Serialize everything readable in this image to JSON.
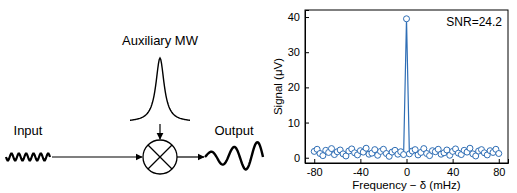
{
  "diagram": {
    "input": "Input",
    "auxiliary": "Auxiliary MW",
    "output": "Output"
  },
  "chart_data": {
    "type": "line",
    "marker": "circle-open",
    "x_label": "Frequency − δ (mHz)",
    "y_label": "Signal (μV)",
    "annotation": "SNR=24.2",
    "x": [
      -80,
      -77.5,
      -75,
      -72.5,
      -70,
      -67.5,
      -65,
      -62.5,
      -60,
      -57.5,
      -55,
      -52.5,
      -50,
      -47.5,
      -45,
      -42.5,
      -40,
      -37.5,
      -35,
      -32.5,
      -30,
      -27.5,
      -25,
      -22.5,
      -20,
      -17.5,
      -15,
      -12.5,
      -10,
      -7.5,
      -5,
      -2.5,
      0,
      2.5,
      5,
      7.5,
      10,
      12.5,
      15,
      17.5,
      20,
      22.5,
      25,
      27.5,
      30,
      32.5,
      35,
      37.5,
      40,
      42.5,
      45,
      47.5,
      50,
      52.5,
      55,
      57.5,
      60,
      62.5,
      65,
      67.5,
      70,
      72.5,
      75,
      77.5,
      80
    ],
    "series": [
      {
        "color": "#2f6eb5",
        "values": [
          1.8,
          2.4,
          1.2,
          0.6,
          2.1,
          1.5,
          2.6,
          0.9,
          1.7,
          2.2,
          1.1,
          0.5,
          1.9,
          2.5,
          1.4,
          0.8,
          2.0,
          1.6,
          2.7,
          1.0,
          1.3,
          2.3,
          0.7,
          1.8,
          2.4,
          1.2,
          0.4,
          1.6,
          2.1,
          1.0,
          1.7,
          0.9,
          39.5,
          1.1,
          1.9,
          2.3,
          0.8,
          1.5,
          2.6,
          1.2,
          0.6,
          2.0,
          1.7,
          2.4,
          1.0,
          1.4,
          2.2,
          0.7,
          1.8,
          2.5,
          1.3,
          0.9,
          2.1,
          1.6,
          2.7,
          1.1,
          0.5,
          1.9,
          2.3,
          1.4,
          0.8,
          2.0,
          1.5,
          2.4,
          1.2
        ]
      }
    ],
    "xlim": [
      -88,
      88
    ],
    "xticks": [
      -80,
      -40,
      0,
      40,
      80
    ],
    "ylim": [
      -1.5,
      42
    ],
    "yticks": [
      0,
      10,
      20,
      30,
      40
    ]
  }
}
